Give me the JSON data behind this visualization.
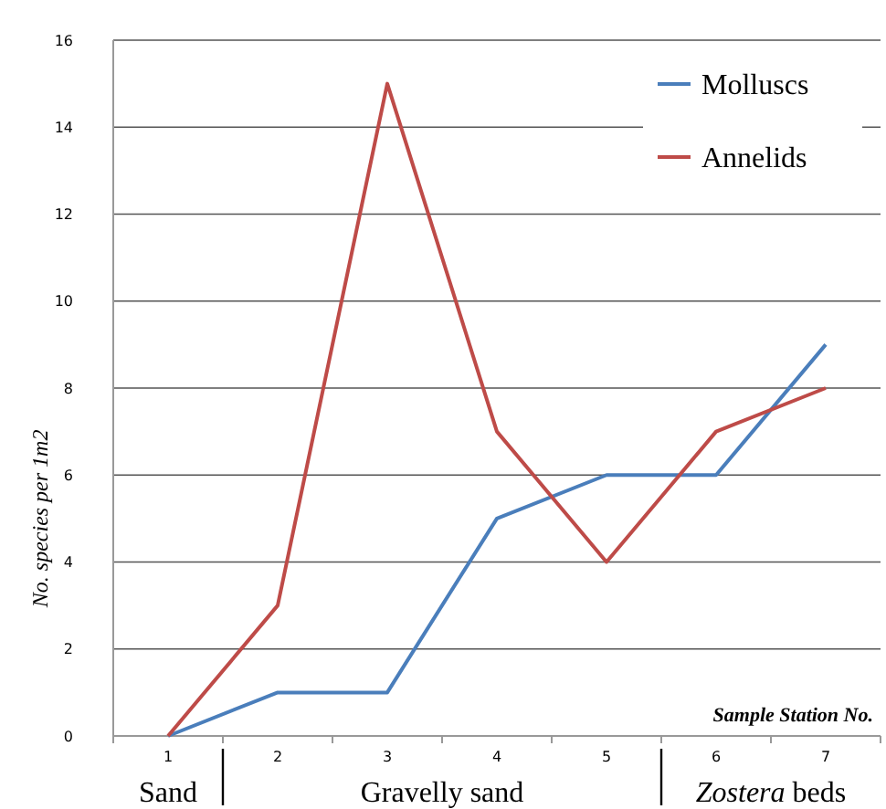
{
  "chart_data": {
    "type": "line",
    "ylabel": "No. species per 1m2",
    "xlabel": "Sample Station No.",
    "categories": [
      "1",
      "2",
      "3",
      "4",
      "5",
      "6",
      "7"
    ],
    "series": [
      {
        "name": "Molluscs",
        "color": "#4a7ebb",
        "values": [
          0,
          1,
          1,
          5,
          6,
          6,
          9
        ]
      },
      {
        "name": "Annelids",
        "color": "#be4b48",
        "values": [
          0,
          3,
          15,
          7,
          4,
          7,
          8
        ]
      }
    ],
    "ylim": [
      0,
      16
    ],
    "yticks": [
      0,
      2,
      4,
      6,
      8,
      10,
      12,
      14,
      16
    ],
    "grid": "y",
    "legend": "top right",
    "marker": "none",
    "line_style": "solid",
    "annotations": [
      "Sand",
      "Gravelly sand",
      "Zostera beds"
    ]
  }
}
